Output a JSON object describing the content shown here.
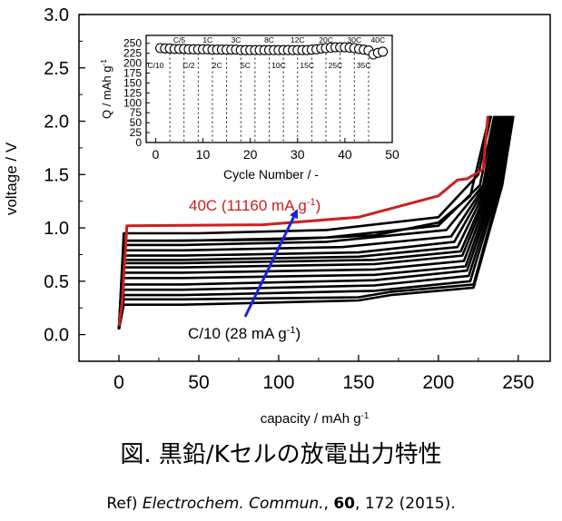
{
  "caption": "図. 黒鉛/Kセルの放電出力特性",
  "reference": {
    "prefix": "Ref) ",
    "journal": "Electrochem. Commun.",
    "volume": "60",
    "rest": ", 172 (2015)."
  },
  "colors": {
    "highlight": "#cc1f1f",
    "arrow": "#1a24d6",
    "curve": "#000000"
  },
  "annotations": {
    "high_rate": "40C (11160 mA g-1)",
    "low_rate": "C/10 (28 mA g-1)"
  },
  "chart_data": [
    {
      "type": "line",
      "title": "",
      "xlabel": "capacity / mAh g-1",
      "ylabel": "voltage / V",
      "xlim": [
        -25,
        270
      ],
      "ylim": [
        -0.25,
        3.0
      ],
      "xticks": [
        "0",
        "50",
        "100",
        "150",
        "200",
        "250"
      ],
      "yticks": [
        "0.0",
        "0.5",
        "1.0",
        "1.5",
        "2.0",
        "2.5",
        "3.0"
      ],
      "grid": false,
      "series": [
        {
          "highlight": false,
          "values": [
            [
              0,
              0.05
            ],
            [
              3,
              0.88
            ],
            [
              30,
              0.88
            ],
            [
              100,
              0.89
            ],
            [
              160,
              0.93
            ],
            [
              200,
              1.05
            ],
            [
              220,
              1.3
            ],
            [
              232,
              2.05
            ]
          ]
        },
        {
          "highlight": false,
          "values": [
            [
              0,
              0.05
            ],
            [
              3,
              0.95
            ],
            [
              50,
              0.95
            ],
            [
              130,
              0.98
            ],
            [
              200,
              1.1
            ],
            [
              225,
              1.5
            ],
            [
              233,
              2.05
            ]
          ]
        },
        {
          "highlight": false,
          "values": [
            [
              0,
              0.05
            ],
            [
              3,
              0.88
            ],
            [
              40,
              0.88
            ],
            [
              130,
              0.91
            ],
            [
              200,
              1.02
            ],
            [
              226,
              1.4
            ],
            [
              235,
              2.05
            ]
          ]
        },
        {
          "highlight": false,
          "values": [
            [
              0,
              0.05
            ],
            [
              3,
              0.84
            ],
            [
              40,
              0.84
            ],
            [
              130,
              0.87
            ],
            [
              205,
              0.98
            ],
            [
              228,
              1.4
            ],
            [
              236,
              2.05
            ]
          ]
        },
        {
          "highlight": false,
          "values": [
            [
              0,
              0.05
            ],
            [
              3,
              0.79
            ],
            [
              40,
              0.79
            ],
            [
              140,
              0.82
            ],
            [
              208,
              0.92
            ],
            [
              229,
              1.4
            ],
            [
              237,
              2.05
            ]
          ]
        },
        {
          "highlight": false,
          "values": [
            [
              0,
              0.05
            ],
            [
              3,
              0.74
            ],
            [
              40,
              0.74
            ],
            [
              150,
              0.77
            ],
            [
              210,
              0.87
            ],
            [
              230,
              1.4
            ],
            [
              238,
              2.05
            ]
          ]
        },
        {
          "highlight": false,
          "values": [
            [
              0,
              0.05
            ],
            [
              3,
              0.7
            ],
            [
              40,
              0.7
            ],
            [
              150,
              0.73
            ],
            [
              212,
              0.82
            ],
            [
              231,
              1.4
            ],
            [
              239,
              2.05
            ]
          ]
        },
        {
          "highlight": false,
          "values": [
            [
              0,
              0.05
            ],
            [
              3,
              0.67
            ],
            [
              40,
              0.67
            ],
            [
              160,
              0.7
            ],
            [
              214,
              0.78
            ],
            [
              232,
              1.4
            ],
            [
              240,
              2.05
            ]
          ]
        },
        {
          "highlight": false,
          "values": [
            [
              0,
              0.05
            ],
            [
              3,
              0.63
            ],
            [
              40,
              0.63
            ],
            [
              160,
              0.66
            ],
            [
              215,
              0.74
            ],
            [
              233,
              1.4
            ],
            [
              241,
              2.05
            ]
          ]
        },
        {
          "highlight": false,
          "values": [
            [
              0,
              0.05
            ],
            [
              3,
              0.58
            ],
            [
              40,
              0.58
            ],
            [
              160,
              0.61
            ],
            [
              216,
              0.69
            ],
            [
              234,
              1.4
            ],
            [
              242,
              2.05
            ]
          ]
        },
        {
          "highlight": false,
          "values": [
            [
              0,
              0.05
            ],
            [
              3,
              0.53
            ],
            [
              40,
              0.53
            ],
            [
              160,
              0.56
            ],
            [
              217,
              0.64
            ],
            [
              235,
              1.4
            ],
            [
              243,
              2.05
            ]
          ]
        },
        {
          "highlight": false,
          "values": [
            [
              0,
              0.05
            ],
            [
              3,
              0.47
            ],
            [
              40,
              0.47
            ],
            [
              160,
              0.51
            ],
            [
              218,
              0.6
            ],
            [
              236,
              1.4
            ],
            [
              244,
              2.05
            ]
          ]
        },
        {
          "highlight": false,
          "values": [
            [
              0,
              0.05
            ],
            [
              3,
              0.42
            ],
            [
              40,
              0.42
            ],
            [
              160,
              0.46
            ],
            [
              219,
              0.55
            ],
            [
              237,
              1.4
            ],
            [
              245,
              2.05
            ]
          ]
        },
        {
          "highlight": false,
          "values": [
            [
              0,
              0.05
            ],
            [
              3,
              0.37
            ],
            [
              40,
              0.37
            ],
            [
              160,
              0.41
            ],
            [
              220,
              0.5
            ],
            [
              238,
              1.4
            ],
            [
              246,
              2.05
            ]
          ]
        },
        {
          "highlight": false,
          "values": [
            [
              0,
              0.05
            ],
            [
              3,
              0.33
            ],
            [
              40,
              0.33
            ],
            [
              150,
              0.35
            ],
            [
              170,
              0.4
            ],
            [
              222,
              0.47
            ],
            [
              239,
              1.4
            ],
            [
              246,
              2.05
            ]
          ]
        },
        {
          "highlight": false,
          "values": [
            [
              0,
              0.05
            ],
            [
              3,
              0.28
            ],
            [
              40,
              0.28
            ],
            [
              150,
              0.32
            ],
            [
              170,
              0.37
            ],
            [
              222,
              0.44
            ],
            [
              240,
              1.4
            ],
            [
              247,
              2.05
            ]
          ]
        },
        {
          "highlight": true,
          "values": [
            [
              0,
              0.08
            ],
            [
              2,
              0.3
            ],
            [
              5,
              1.02
            ],
            [
              90,
              1.03
            ],
            [
              150,
              1.1
            ],
            [
              200,
              1.3
            ],
            [
              212,
              1.45
            ],
            [
              218,
              1.46
            ],
            [
              228,
              1.55
            ],
            [
              231,
              2.05
            ]
          ]
        }
      ]
    },
    {
      "type": "scatter",
      "title": "",
      "xlabel": "Cycle Number  /  -",
      "ylabel": "Q  /  mAh g-1",
      "xlim": [
        -2,
        50
      ],
      "ylim": [
        0,
        270
      ],
      "xticks": [
        "0",
        "10",
        "20",
        "30",
        "40",
        "50"
      ],
      "yticks": [
        "0",
        "25",
        "50",
        "75",
        "100",
        "125",
        "150",
        "175",
        "200",
        "225",
        "250"
      ],
      "grid": false,
      "rate_labels_top": [
        {
          "label": "C/5",
          "x": 5
        },
        {
          "label": "1C",
          "x": 11
        },
        {
          "label": "3C",
          "x": 17
        },
        {
          "label": "8C",
          "x": 24
        },
        {
          "label": "12C",
          "x": 30
        },
        {
          "label": "20C",
          "x": 36
        },
        {
          "label": "30C",
          "x": 42
        },
        {
          "label": "40C",
          "x": 47
        }
      ],
      "rate_labels_bottom": [
        {
          "label": "C/10",
          "x": 0
        },
        {
          "label": "C/2",
          "x": 7
        },
        {
          "label": "2C",
          "x": 13
        },
        {
          "label": "5C",
          "x": 19
        },
        {
          "label": "10C",
          "x": 26
        },
        {
          "label": "15C",
          "x": 32
        },
        {
          "label": "25C",
          "x": 38
        },
        {
          "label": "35C",
          "x": 44
        }
      ],
      "divider_cycles": [
        3,
        6,
        9,
        12,
        15,
        18,
        21,
        24,
        27,
        30,
        33,
        36,
        39,
        42,
        45
      ],
      "x": [
        1,
        2,
        3,
        4,
        5,
        6,
        7,
        8,
        9,
        10,
        11,
        12,
        13,
        14,
        15,
        16,
        17,
        18,
        19,
        20,
        21,
        22,
        23,
        24,
        25,
        26,
        27,
        28,
        29,
        30,
        31,
        32,
        33,
        34,
        35,
        36,
        37,
        38,
        39,
        40,
        41,
        42,
        43,
        44,
        45,
        46,
        47,
        48
      ],
      "values": [
        238,
        237,
        237,
        236,
        236,
        236,
        235,
        235,
        235,
        235,
        235,
        234,
        234,
        234,
        234,
        234,
        234,
        233,
        233,
        233,
        233,
        233,
        233,
        233,
        233,
        233,
        233,
        233,
        233,
        233,
        233,
        233,
        234,
        235,
        237,
        238,
        239,
        240,
        240,
        240,
        239,
        238,
        236,
        234,
        232,
        222,
        226,
        229
      ]
    }
  ]
}
